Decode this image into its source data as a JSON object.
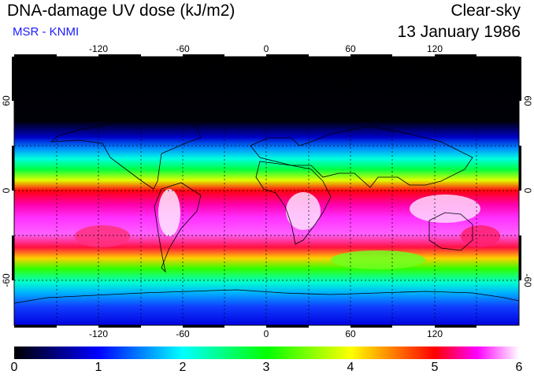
{
  "header": {
    "title": "DNA-damage UV dose (kJ/m2)",
    "subtitle": "MSR - KNMI",
    "mode": "Clear-sky",
    "date": "13 January 1986"
  },
  "map": {
    "lon_ticks": [
      "-120",
      "-60",
      "0",
      "60",
      "120"
    ],
    "lat_ticks": [
      "60",
      "0",
      "-60"
    ],
    "lon_range": [
      -180,
      180
    ],
    "lat_range": [
      -90,
      90
    ]
  },
  "colorbar": {
    "min": 0,
    "max": 6,
    "labels": [
      "0",
      "1",
      "2",
      "3",
      "4",
      "5",
      "6"
    ],
    "stops": [
      "#000000",
      "#0000ff",
      "#00ffff",
      "#00ff00",
      "#ffff00",
      "#ff0000",
      "#ff00ff",
      "#ffffff"
    ]
  }
}
